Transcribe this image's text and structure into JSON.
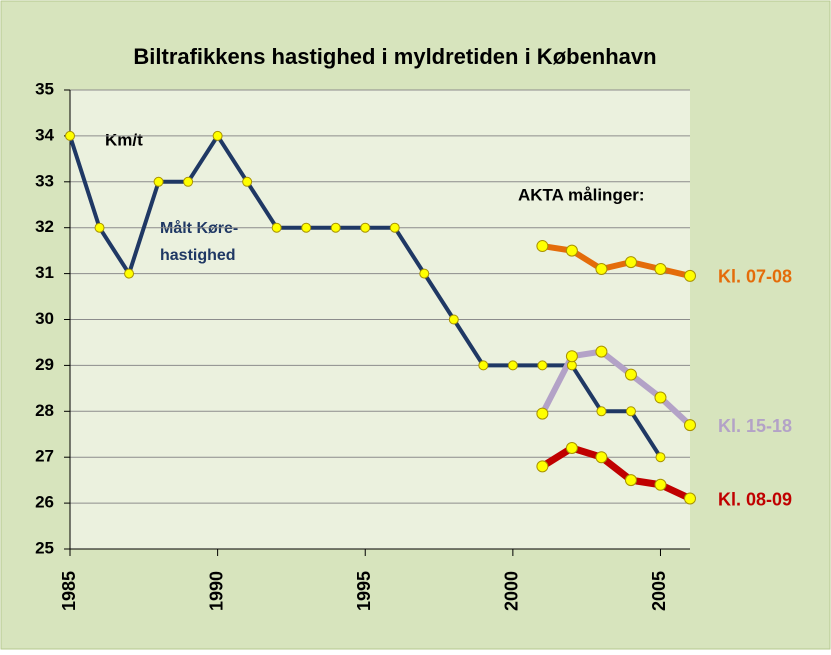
{
  "chart_data": {
    "type": "line",
    "title": "Biltrafikkens hastighed i myldretiden i København",
    "annotations": [
      "Km/t",
      "Målt Køre-",
      "hastighed",
      "AKTA målinger:"
    ],
    "xlim": [
      1985,
      2006
    ],
    "xticks": [
      1985,
      1990,
      1995,
      2000,
      2005
    ],
    "ylim": [
      25,
      35
    ],
    "yticks": [
      25,
      26,
      27,
      28,
      29,
      30,
      31,
      32,
      33,
      34,
      35
    ],
    "grid": true,
    "series": [
      {
        "color": "#1f3864",
        "x": [
          1985,
          1986,
          1987,
          1988,
          1989,
          1990,
          1991,
          1992,
          1993,
          1994,
          1995,
          1996,
          1997,
          1998,
          1999,
          2000,
          2001,
          2002,
          2003,
          2004,
          2005
        ],
        "values": [
          34,
          32,
          31,
          33,
          33,
          34,
          33,
          32,
          32,
          32,
          32,
          32,
          31,
          30,
          29,
          29,
          29,
          29,
          28,
          28,
          27
        ]
      },
      {
        "name": "Kl. 07-08",
        "color": "#e46c0a",
        "x": [
          2001,
          2002,
          2003,
          2004,
          2005,
          2006
        ],
        "values": [
          31.6,
          31.5,
          31.1,
          31.25,
          31.1,
          30.95
        ]
      },
      {
        "name": "Kl. 15-18",
        "color": "#b3a2c7",
        "x": [
          2001,
          2002,
          2003,
          2004,
          2005,
          2006
        ],
        "values": [
          27.95,
          29.2,
          29.3,
          28.8,
          28.3,
          27.7
        ]
      },
      {
        "name": "Kl. 08-09",
        "color": "#c00000",
        "x": [
          2001,
          2002,
          2003,
          2004,
          2005,
          2006
        ],
        "values": [
          26.8,
          27.2,
          27.0,
          26.5,
          26.4,
          26.1
        ]
      }
    ]
  }
}
